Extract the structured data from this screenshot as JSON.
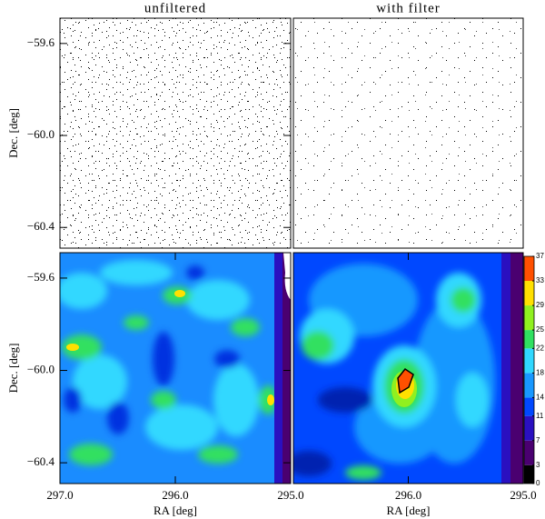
{
  "chart_data": [
    {
      "type": "image",
      "title": "unfiltered",
      "ylabel": "Dec. [deg]",
      "xlim": [
        297.0,
        295.0
      ],
      "ylim": [
        -60.49,
        -59.49
      ],
      "yticks": [
        {
          "value": -59.6,
          "label": "−59.6"
        },
        {
          "value": -60.0,
          "label": "−60.0"
        },
        {
          "value": -60.4,
          "label": "−60.4"
        }
      ]
    },
    {
      "type": "image",
      "title": "with filter",
      "xlim": [
        297.0,
        295.0
      ],
      "ylim": [
        -60.49,
        -59.49
      ]
    },
    {
      "type": "image",
      "ylabel": "Dec. [deg]",
      "xlabel": "RA [deg]",
      "xlim": [
        297.0,
        295.0
      ],
      "ylim": [
        -60.49,
        -59.49
      ],
      "yticks": [
        {
          "value": -59.6,
          "label": "−59.6"
        },
        {
          "value": -60.0,
          "label": "−60.0"
        },
        {
          "value": -60.4,
          "label": "−60.4"
        }
      ],
      "xticks": [
        {
          "value": 297.0,
          "label": "297.0"
        },
        {
          "value": 296.0,
          "label": "296.0"
        },
        {
          "value": 295.0,
          "label": "295.0"
        }
      ]
    },
    {
      "type": "image",
      "xlabel": "RA [deg]",
      "xlim": [
        297.0,
        295.0
      ],
      "ylim": [
        -60.49,
        -59.49
      ],
      "xticks": [
        {
          "value": 296.0,
          "label": "296.0"
        },
        {
          "value": 295.0,
          "label": "295.0"
        }
      ],
      "colorbar": {
        "clim": [
          0,
          37
        ],
        "ticks": [
          0,
          3,
          7,
          11,
          14,
          18,
          22,
          25,
          29,
          33,
          37
        ],
        "colors": [
          "#000000",
          "#4a0070",
          "#2a10c0",
          "#0048ff",
          "#1898ff",
          "#30d8ff",
          "#30e060",
          "#90f020",
          "#ffe000",
          "#ff5000"
        ]
      }
    }
  ]
}
